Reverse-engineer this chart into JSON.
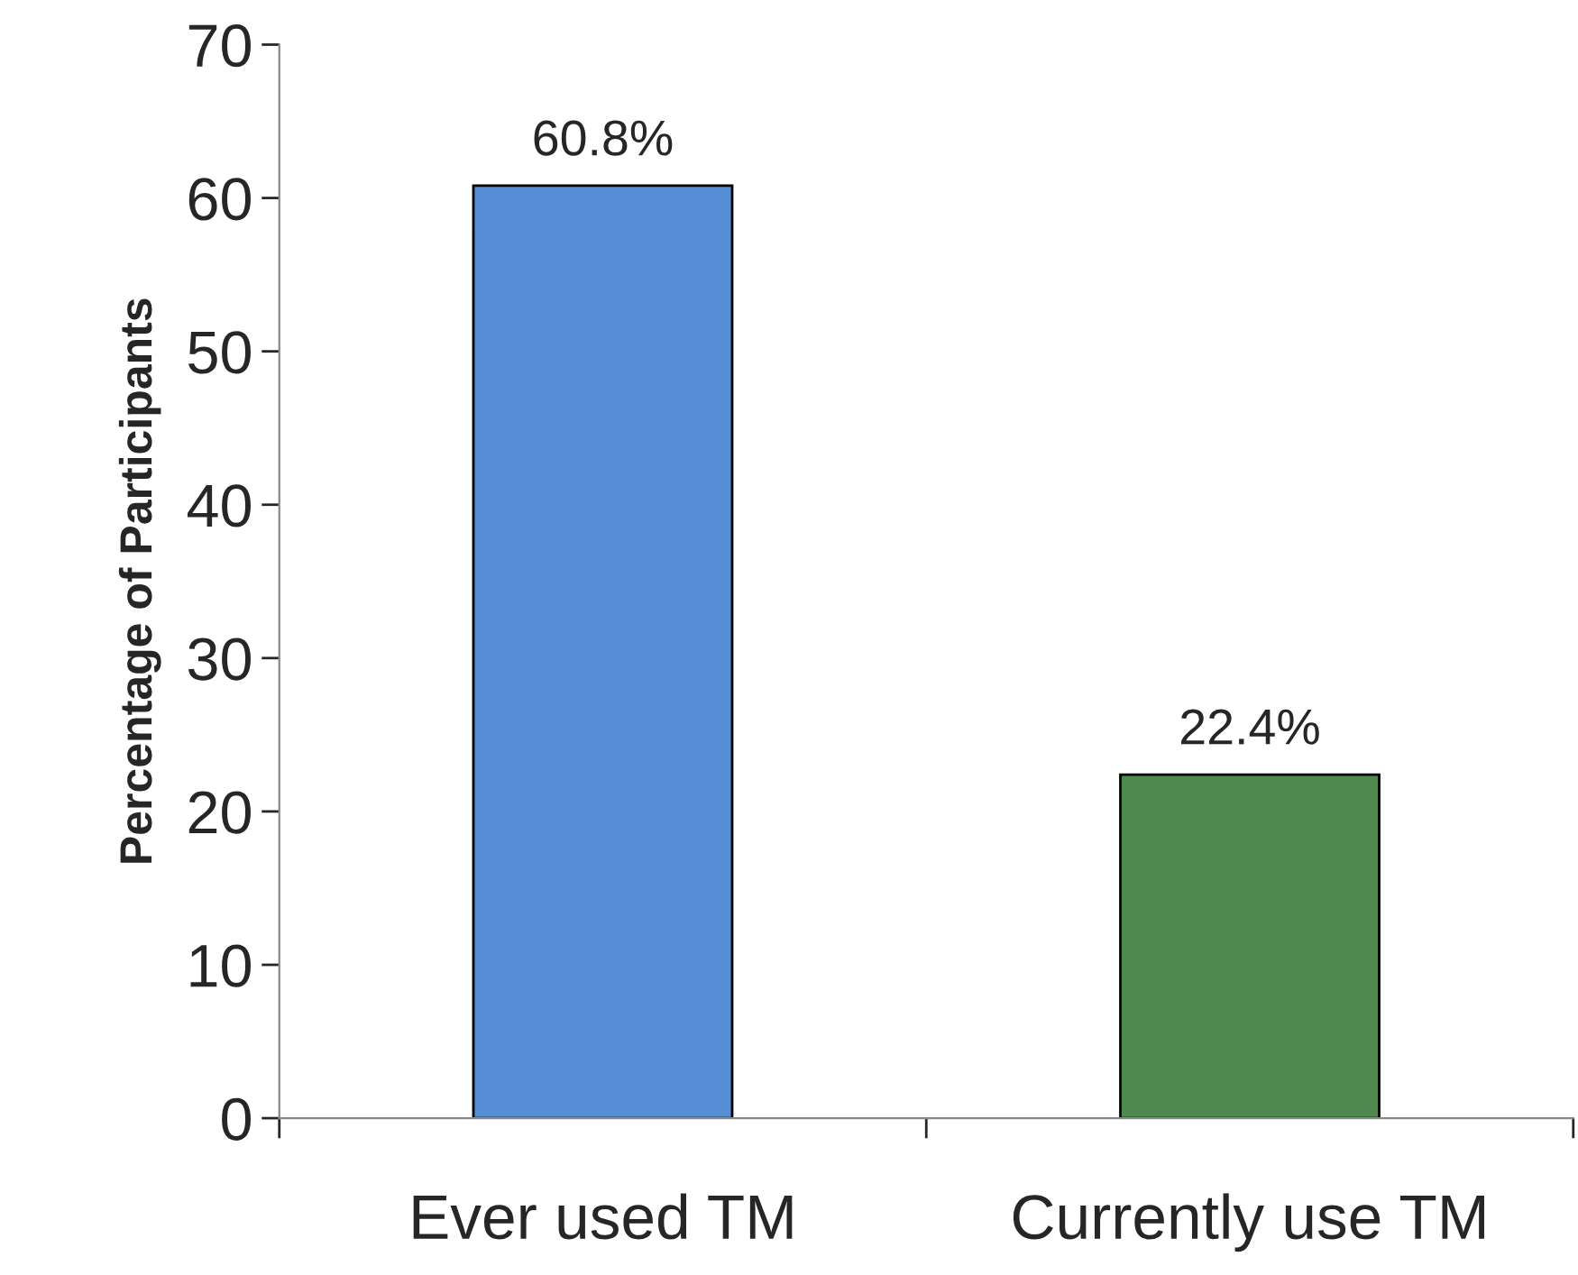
{
  "chart_data": {
    "type": "bar",
    "ylabel": "Percentage of Participants",
    "categories": [
      "Ever used TM",
      "Currently use TM"
    ],
    "values": [
      60.8,
      22.4
    ],
    "colors": [
      "#558ed5",
      "#4e8a4e"
    ],
    "value_labels": [
      "60.8%",
      "22.4%"
    ],
    "ylim": [
      0,
      70
    ],
    "yticks": [
      0,
      10,
      20,
      30,
      40,
      50,
      60,
      70
    ],
    "grid": false,
    "legend": false
  }
}
